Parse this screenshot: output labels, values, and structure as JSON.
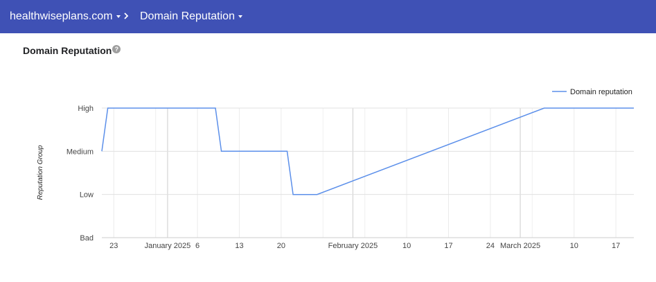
{
  "header": {
    "site": "healthwiseplans.com",
    "separator": "›",
    "page": "Domain Reputation"
  },
  "panel": {
    "title": "Domain Reputation",
    "help": "?"
  },
  "chart_data": {
    "type": "line",
    "ylabel": "Reputation Group",
    "y_categories": [
      "Bad",
      "Low",
      "Medium",
      "High"
    ],
    "x_ticks": [
      "23",
      "January 2025",
      "6",
      "13",
      "20",
      "February 2025",
      "10",
      "17",
      "24",
      "March 2025",
      "10",
      "17"
    ],
    "series": [
      {
        "name": "Domain reputation",
        "color": "#5b8fea",
        "points": [
          {
            "x": "2024-12-21",
            "y": "Medium"
          },
          {
            "x": "2024-12-22",
            "y": "High"
          },
          {
            "x": "2025-01-09",
            "y": "High"
          },
          {
            "x": "2025-01-10",
            "y": "Medium"
          },
          {
            "x": "2025-01-21",
            "y": "Medium"
          },
          {
            "x": "2025-01-22",
            "y": "Low"
          },
          {
            "x": "2025-01-26",
            "y": "Low"
          },
          {
            "x": "2025-03-05",
            "y": "High"
          },
          {
            "x": "2025-03-20",
            "y": "High"
          }
        ]
      }
    ],
    "legend_position": "top-right",
    "grid": true
  }
}
